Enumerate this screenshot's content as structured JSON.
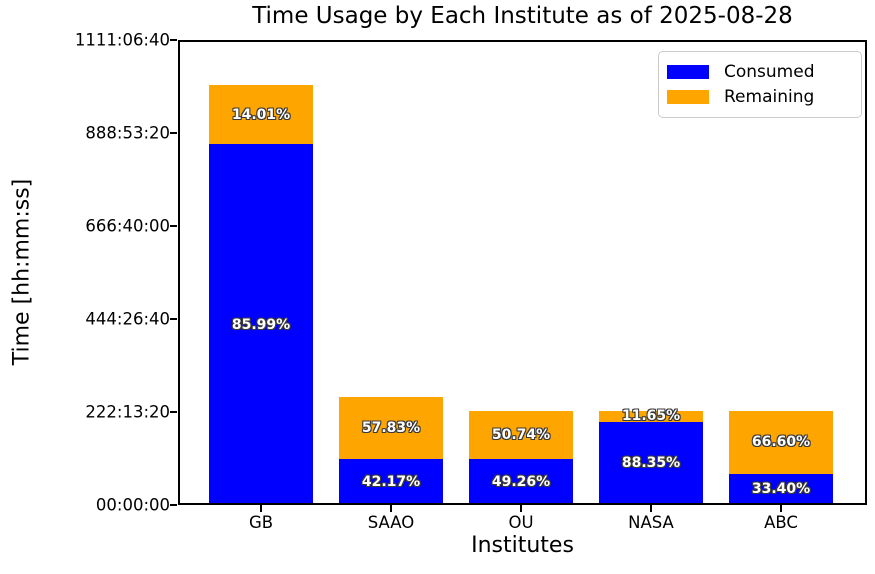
{
  "chart_data": {
    "type": "bar",
    "stacked": true,
    "title": "Time Usage by Each Institute as of 2025-08-28",
    "xlabel": "Institutes",
    "ylabel": "Time [hh:mm:ss]",
    "categories": [
      "GB",
      "SAAO",
      "OU",
      "NASA",
      "ABC"
    ],
    "totals_seconds_est": [
      3610000,
      930000,
      810000,
      810000,
      810000
    ],
    "series": [
      {
        "name": "Consumed",
        "color": "#0000ff",
        "percent_values": [
          85.99,
          42.17,
          49.26,
          88.35,
          33.4
        ],
        "labels": [
          "85.99%",
          "42.17%",
          "49.26%",
          "88.35%",
          "33.40%"
        ]
      },
      {
        "name": "Remaining",
        "color": "#ffa500",
        "percent_values": [
          14.01,
          57.83,
          50.74,
          11.65,
          66.6
        ],
        "labels": [
          "14.01%",
          "57.83%",
          "50.74%",
          "11.65%",
          "66.60%"
        ]
      }
    ],
    "yticks": [
      {
        "seconds": 0,
        "label": "00:00:00"
      },
      {
        "seconds": 800000,
        "label": "222:13:20"
      },
      {
        "seconds": 1600000,
        "label": "444:26:40"
      },
      {
        "seconds": 2400000,
        "label": "666:40:00"
      },
      {
        "seconds": 3200000,
        "label": "888:53:20"
      },
      {
        "seconds": 4000000,
        "label": "1111:06:40"
      }
    ],
    "ylim_seconds": [
      0,
      4000000
    ],
    "grid": false,
    "legend_position": "upper right",
    "bar_label_text_color": "#ffffff"
  }
}
